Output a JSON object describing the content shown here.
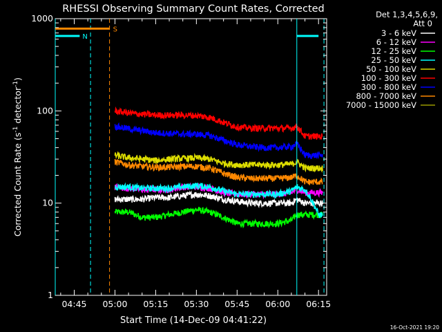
{
  "chart_data": {
    "type": "line",
    "title": "RHESSI Observing Summary Count Rates, Corrected",
    "xlabel": "Start Time (14-Dec-09 04:41:22)",
    "ylabel": "Corrected Count Rate (s",
    "ylabel_sup1": "-1",
    "ylabel_mid": " detector",
    "ylabel_sup2": "-1",
    "ylabel_end": ")",
    "yscale": "log",
    "ylim": [
      1,
      1000
    ],
    "xlim": [
      "04:38",
      "06:18"
    ],
    "xticks": [
      "04:45",
      "05:00",
      "05:15",
      "05:30",
      "05:45",
      "06:00",
      "06:15"
    ],
    "yticks": [
      "1",
      "10",
      "100",
      "1000"
    ],
    "legend_header": [
      "Det 1,3,4,5,6,9,",
      "Att 0"
    ],
    "legend_position": "top-right",
    "series": [
      {
        "name": "3 - 6 keV",
        "color": "#ffffff",
        "x": [
          "05:00",
          "05:05",
          "05:10",
          "05:15",
          "05:20",
          "05:25",
          "05:30",
          "05:35",
          "05:40",
          "05:45",
          "05:50",
          "05:55",
          "06:00",
          "06:05",
          "06:07",
          "06:10",
          "06:15"
        ],
        "y": [
          11,
          11,
          11,
          11.5,
          11.5,
          12,
          12.5,
          12,
          11,
          10.5,
          10,
          10,
          10,
          10,
          11,
          10,
          10
        ]
      },
      {
        "name": "6 - 12 keV",
        "color": "#ff00ff",
        "x": [
          "05:00",
          "05:05",
          "05:10",
          "05:15",
          "05:20",
          "05:25",
          "05:30",
          "05:35",
          "05:40",
          "05:45",
          "05:50",
          "05:55",
          "06:00",
          "06:05",
          "06:07",
          "06:10",
          "06:15"
        ],
        "y": [
          15,
          14.5,
          14,
          14,
          14,
          15,
          15,
          14.5,
          13,
          12.5,
          12.5,
          12.5,
          12.5,
          13,
          14,
          13,
          13
        ]
      },
      {
        "name": "12 - 25 keV",
        "color": "#00ff00",
        "x": [
          "05:00",
          "05:05",
          "05:10",
          "05:15",
          "05:20",
          "05:25",
          "05:30",
          "05:35",
          "05:40",
          "05:45",
          "05:50",
          "05:55",
          "06:00",
          "06:05",
          "06:07",
          "06:10",
          "06:15"
        ],
        "y": [
          8,
          8,
          7,
          7,
          7.5,
          8,
          8.5,
          8,
          7,
          6,
          6,
          6,
          6,
          6.5,
          7.5,
          7.5,
          7.5
        ]
      },
      {
        "name": "25 - 50 keV",
        "color": "#00ffff",
        "x": [
          "05:00",
          "05:05",
          "05:10",
          "05:15",
          "05:20",
          "05:25",
          "05:30",
          "05:35",
          "05:40",
          "05:45",
          "05:50",
          "05:55",
          "06:00",
          "06:05",
          "06:07",
          "06:10",
          "06:15"
        ],
        "y": [
          15,
          15,
          14.5,
          14.5,
          14.5,
          15,
          15.5,
          15,
          13.5,
          12.5,
          12.5,
          12.5,
          12.5,
          13.5,
          15,
          14,
          7.5
        ]
      },
      {
        "name": "50 - 100 keV",
        "color": "#dddd00",
        "x": [
          "05:00",
          "05:05",
          "05:10",
          "05:15",
          "05:20",
          "05:25",
          "05:30",
          "05:35",
          "05:40",
          "05:45",
          "05:50",
          "05:55",
          "06:00",
          "06:05",
          "06:07",
          "06:10",
          "06:15"
        ],
        "y": [
          33,
          31,
          30,
          29,
          30,
          30.5,
          31,
          30,
          27,
          26,
          26,
          26,
          26,
          26.5,
          28,
          24,
          24
        ]
      },
      {
        "name": "100 - 300 keV",
        "color": "#ff0000",
        "x": [
          "05:00",
          "05:05",
          "05:10",
          "05:15",
          "05:20",
          "05:25",
          "05:30",
          "05:35",
          "05:40",
          "05:45",
          "05:50",
          "05:55",
          "06:00",
          "06:05",
          "06:07",
          "06:10",
          "06:15"
        ],
        "y": [
          100,
          95,
          92,
          90,
          90,
          90,
          89,
          85,
          75,
          67,
          65,
          65,
          65,
          65,
          68,
          53,
          53
        ]
      },
      {
        "name": "300 - 800 keV",
        "color": "#0000ff",
        "x": [
          "05:00",
          "05:05",
          "05:10",
          "05:15",
          "05:20",
          "05:25",
          "05:30",
          "05:35",
          "05:40",
          "05:45",
          "05:50",
          "05:55",
          "06:00",
          "06:05",
          "06:07",
          "06:10",
          "06:15"
        ],
        "y": [
          68,
          64,
          61,
          58,
          57,
          56,
          56,
          54,
          48,
          43,
          41,
          40,
          40,
          41,
          44,
          33,
          33
        ]
      },
      {
        "name": "800 - 7000 keV",
        "color": "#ff8800",
        "x": [
          "05:00",
          "05:05",
          "05:10",
          "05:15",
          "05:20",
          "05:25",
          "05:30",
          "05:35",
          "05:40",
          "05:45",
          "05:50",
          "05:55",
          "06:00",
          "06:05",
          "06:07",
          "06:10",
          "06:15"
        ],
        "y": [
          28,
          26,
          25,
          24.5,
          24.5,
          25,
          25,
          24,
          21,
          19,
          18.5,
          18.5,
          18.5,
          19,
          20,
          17,
          17
        ]
      },
      {
        "name": "7000 - 15000 keV",
        "color": "#999900",
        "x": [],
        "y": []
      }
    ],
    "flag_lines": [
      {
        "label": "N",
        "color": "#00ffff",
        "segments": [
          {
            "x": [
              "04:38",
              "04:47"
            ],
            "y": 650
          },
          {
            "x": [
              "06:07",
              "06:15"
            ],
            "y": 650
          }
        ],
        "verticals": [
          "04:38",
          "04:51",
          "06:07",
          "06:17"
        ]
      },
      {
        "label": "S",
        "color": "#ff8800",
        "segments": [
          {
            "x": [
              "04:38",
              "04:58"
            ],
            "y": 780
          }
        ],
        "verticals": [
          "04:58"
        ]
      }
    ]
  },
  "footer": {
    "date_stamp": "16-Oct-2021 19:20"
  }
}
